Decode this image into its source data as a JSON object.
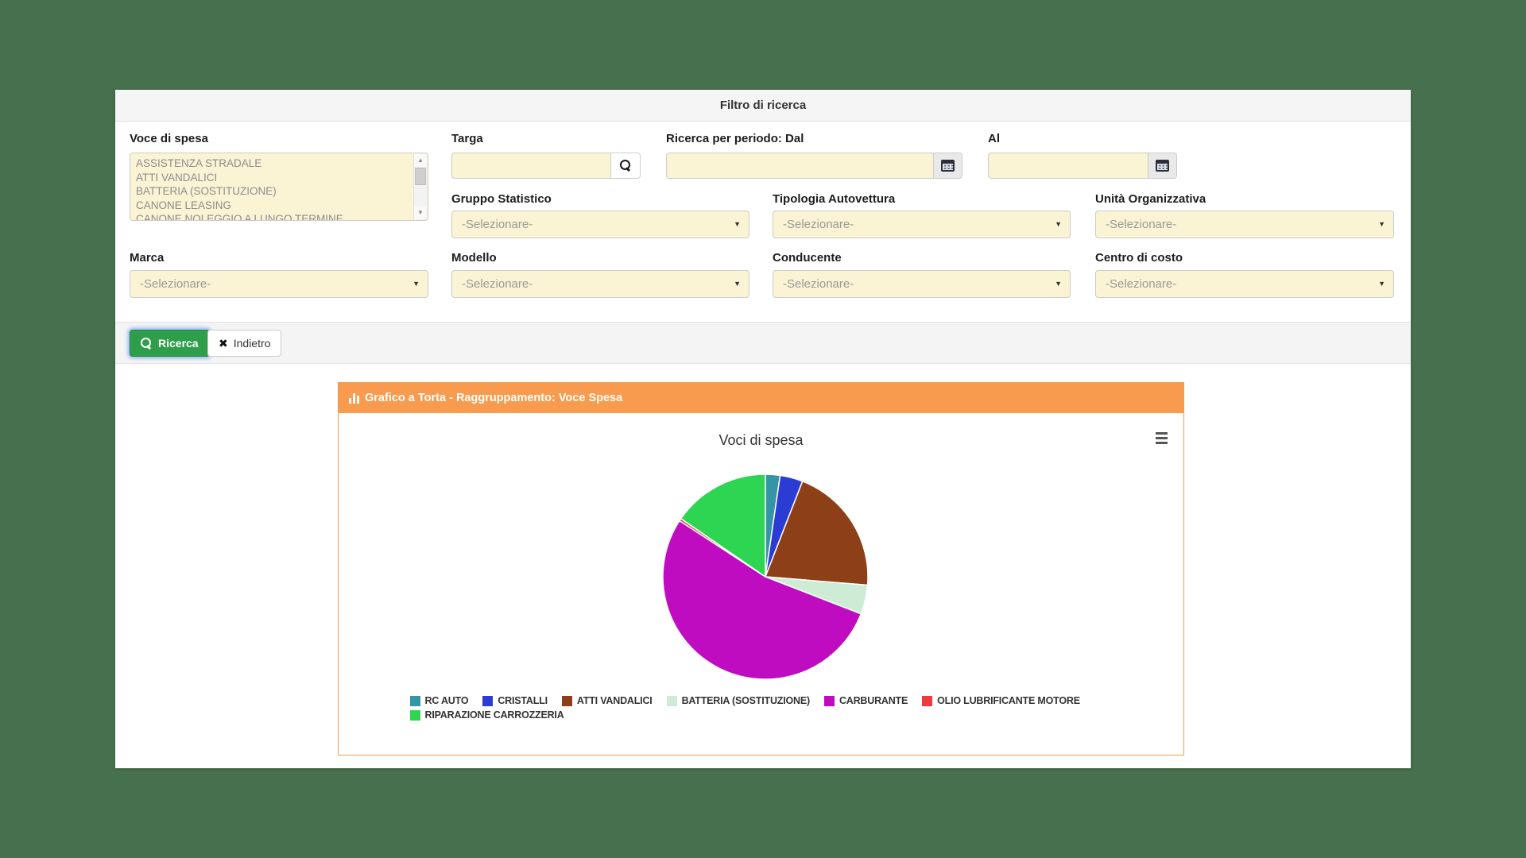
{
  "page": {
    "background_color": "#47714e"
  },
  "filter_panel": {
    "title": "Filtro di ricerca",
    "fields": {
      "voce_di_spesa": {
        "label": "Voce di spesa",
        "options": [
          "ASSISTENZA STRADALE",
          "ATTI VANDALICI",
          "BATTERIA (SOSTITUZIONE)",
          "CANONE LEASING",
          "CANONE NOLEGGIO A LUNGO TERMINE"
        ]
      },
      "targa": {
        "label": "Targa",
        "value": ""
      },
      "dal": {
        "label": "Ricerca per periodo: Dal",
        "value": ""
      },
      "al": {
        "label": "Al",
        "value": ""
      },
      "gruppo_statistico": {
        "label": "Gruppo Statistico",
        "value": "-Selezionare-"
      },
      "tipologia_autovettura": {
        "label": "Tipologia Autovettura",
        "value": "-Selezionare-"
      },
      "unita_organizzativa": {
        "label": "Unità Organizzativa",
        "value": "-Selezionare-"
      },
      "marca": {
        "label": "Marca",
        "value": "-Selezionare-"
      },
      "modello": {
        "label": "Modello",
        "value": "-Selezionare-"
      },
      "conducente": {
        "label": "Conducente",
        "value": "-Selezionare-"
      },
      "centro_di_costo": {
        "label": "Centro di costo",
        "value": "-Selezionare-"
      }
    },
    "buttons": {
      "ricerca": "Ricerca",
      "indietro": "Indietro"
    },
    "icons": {
      "targa_button": "search-icon",
      "dal_button": "calendar-icon",
      "al_button": "calendar-icon",
      "ricerca_button": "search-icon",
      "indietro_button": "x-icon"
    }
  },
  "chart_panel": {
    "header": "Grafico a Torta - Raggruppamento: Voce Spesa",
    "header_color": "#f89b4e",
    "icons": {
      "header": "bar-chart-icon",
      "context_menu": "hamburger-icon"
    }
  },
  "chart_data": {
    "type": "pie",
    "title": "Voci di spesa",
    "unit": "percent (estimated from slice angles)",
    "start_angle_deg": 0,
    "legend_position": "bottom",
    "series": [
      {
        "name": "RC AUTO",
        "value": 2.3,
        "color": "#3594a6"
      },
      {
        "name": "CRISTALLI",
        "value": 3.6,
        "color": "#2b3cd5"
      },
      {
        "name": "ATTI VANDALICI",
        "value": 20.4,
        "color": "#8d4017"
      },
      {
        "name": "BATTERIA (SOSTITUZIONE)",
        "value": 4.6,
        "color": "#cdebd5"
      },
      {
        "name": "CARBURANTE",
        "value": 53.3,
        "color": "#c00cc0"
      },
      {
        "name": "OLIO LUBRIFICANTE MOTORE",
        "value": 0.4,
        "color": "#ef393c"
      },
      {
        "name": "RIPARAZIONE CARROZZERIA",
        "value": 15.4,
        "color": "#2ed552"
      }
    ]
  }
}
